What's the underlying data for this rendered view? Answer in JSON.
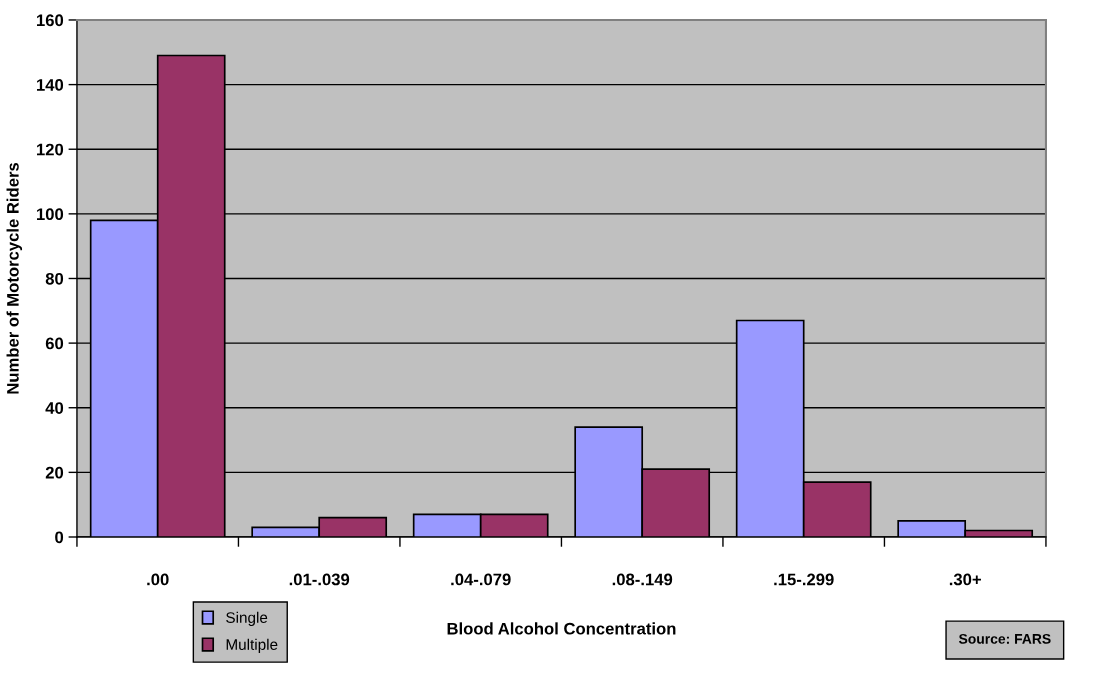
{
  "chart_data": {
    "type": "bar",
    "xlabel": "Blood Alcohol Concentration",
    "ylabel": "Number of Motorcycle Riders",
    "categories": [
      ".00",
      ".01-.039",
      ".04-.079",
      ".08-.149",
      ".15-.299",
      ".30+"
    ],
    "series": [
      {
        "name": "Single",
        "color": "#9999ff",
        "values": [
          98,
          3,
          7,
          34,
          67,
          5
        ]
      },
      {
        "name": "Multiple",
        "color": "#993366",
        "values": [
          149,
          6,
          7,
          21,
          17,
          2
        ]
      }
    ],
    "ylim": [
      0,
      160
    ],
    "yticks": [
      0,
      20,
      40,
      60,
      80,
      100,
      120,
      140,
      160
    ],
    "grid": "y",
    "legend": "bottom left",
    "annotations": [
      "Source: FARS"
    ]
  }
}
